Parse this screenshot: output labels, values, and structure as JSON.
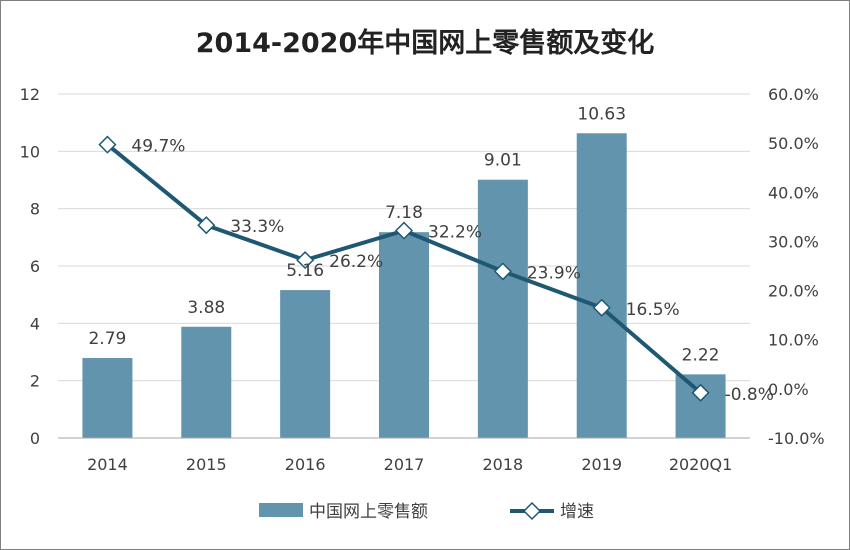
{
  "chart_data": {
    "type": "bar",
    "title": "2014-2020年中国网上零售额及变化",
    "categories": [
      "2014",
      "2015",
      "2016",
      "2017",
      "2018",
      "2019",
      "2020Q1"
    ],
    "series": [
      {
        "name": "中国网上零售额",
        "kind": "bar",
        "axis": "left",
        "values": [
          2.79,
          3.88,
          5.16,
          7.18,
          9.01,
          10.63,
          2.22
        ],
        "labels": [
          "2.79",
          "3.88",
          "5.16",
          "7.18",
          "9.01",
          "10.63",
          "2.22"
        ]
      },
      {
        "name": "增速",
        "kind": "line",
        "axis": "right",
        "values": [
          49.7,
          33.3,
          26.2,
          32.2,
          23.9,
          16.5,
          -0.8
        ],
        "labels": [
          "49.7%",
          "33.3%",
          "26.2%",
          "32.2%",
          "23.9%",
          "16.5%",
          "-0.8%"
        ]
      }
    ],
    "y_left": {
      "range": [
        0,
        12
      ],
      "ticks": [
        0,
        2,
        4,
        6,
        8,
        10,
        12
      ],
      "tick_labels": [
        "0",
        "2",
        "4",
        "6",
        "8",
        "10",
        "12"
      ]
    },
    "y_right": {
      "range": [
        -10,
        60
      ],
      "ticks": [
        -10,
        0,
        10,
        20,
        30,
        40,
        50,
        60
      ],
      "tick_labels": [
        "-10.0%",
        "0.0%",
        "10.0%",
        "20.0%",
        "30.0%",
        "40.0%",
        "50.0%",
        "60.0%"
      ]
    },
    "grid": true,
    "legend_position": "bottom",
    "colors": {
      "bar": "#6394ad",
      "line": "#1f5873",
      "marker_fill": "#ffffff",
      "grid": "#d9d9d9"
    }
  }
}
